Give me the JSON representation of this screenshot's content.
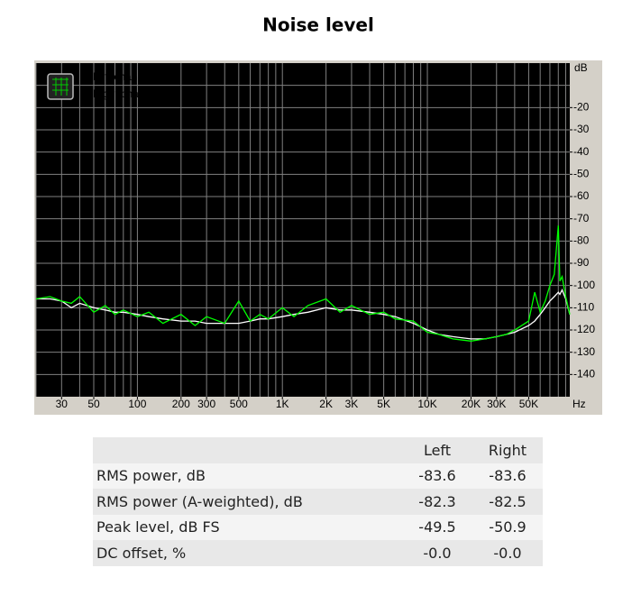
{
  "chart_data": {
    "type": "line",
    "title": "Noise level",
    "xlabel": "Hz",
    "ylabel": "dB",
    "xscale": "log",
    "xlim": [
      20,
      96000
    ],
    "ylim": [
      -150,
      0
    ],
    "xticks": [
      30,
      50,
      100,
      200,
      300,
      500,
      {
        "value": 1000,
        "label": "1K"
      },
      {
        "value": 2000,
        "label": "2K"
      },
      {
        "value": 3000,
        "label": "3K"
      },
      {
        "value": 5000,
        "label": "5K"
      },
      {
        "value": 10000,
        "label": "10K"
      },
      {
        "value": 20000,
        "label": "20K"
      },
      {
        "value": 30000,
        "label": "30K"
      },
      {
        "value": 50000,
        "label": "50K"
      }
    ],
    "yticks": [
      -20,
      -30,
      -40,
      -50,
      -60,
      -70,
      -80,
      -90,
      -100,
      -110,
      -120,
      -130,
      -140
    ],
    "xgrid": [
      20,
      30,
      40,
      50,
      60,
      70,
      80,
      90,
      100,
      200,
      300,
      400,
      500,
      600,
      700,
      800,
      900,
      1000,
      2000,
      3000,
      4000,
      5000,
      6000,
      7000,
      8000,
      9000,
      10000,
      20000,
      30000,
      40000,
      50000,
      60000,
      70000,
      80000,
      90000
    ],
    "ygrid": [
      -10,
      -20,
      -30,
      -40,
      -50,
      -60,
      -70,
      -80,
      -90,
      -100,
      -110,
      -120,
      -130,
      -140
    ],
    "grid": true,
    "legend": "top-left",
    "x": [
      20,
      25,
      30,
      35,
      40,
      50,
      60,
      70,
      80,
      100,
      120,
      150,
      200,
      250,
      300,
      400,
      500,
      600,
      700,
      800,
      1000,
      1200,
      1500,
      2000,
      2500,
      3000,
      4000,
      5000,
      6000,
      8000,
      10000,
      12000,
      15000,
      20000,
      25000,
      30000,
      35000,
      40000,
      50000,
      55000,
      60000,
      65000,
      70000,
      75000,
      80000,
      82000,
      85000,
      90000,
      96000
    ],
    "series": [
      {
        "name": "Left channel",
        "color": "#ffffff",
        "values": [
          -106,
          -106,
          -107,
          -110,
          -108,
          -110,
          -111,
          -112,
          -112,
          -113,
          -114,
          -115,
          -116,
          -116,
          -117,
          -117,
          -117,
          -116,
          -115,
          -115,
          -114,
          -113,
          -112,
          -110,
          -111,
          -111,
          -112,
          -113,
          -114,
          -117,
          -120,
          -122,
          -123,
          -124,
          -124,
          -123,
          -122,
          -121,
          -118,
          -116,
          -113,
          -110,
          -107,
          -105,
          -103,
          -104,
          -102,
          -106,
          -113
        ]
      },
      {
        "name": "Right channel",
        "color": "#00ff00",
        "values": [
          -106,
          -105,
          -107,
          -108,
          -105,
          -112,
          -109,
          -113,
          -111,
          -114,
          -112,
          -117,
          -113,
          -118,
          -114,
          -117,
          -107,
          -116,
          -113,
          -115,
          -110,
          -114,
          -109,
          -106,
          -112,
          -109,
          -113,
          -112,
          -115,
          -116,
          -121,
          -122,
          -124,
          -125,
          -124,
          -123,
          -122,
          -120,
          -116,
          -103,
          -112,
          -107,
          -100,
          -95,
          -73,
          -98,
          -96,
          -105,
          -113
        ]
      }
    ]
  },
  "table": {
    "columns": [
      "Left",
      "Right"
    ],
    "rows": [
      [
        "RMS power, dB",
        "-83.6",
        "-83.6"
      ],
      [
        "RMS power (A-weighted), dB",
        "-82.3",
        "-82.5"
      ],
      [
        "Peak level, dB FS",
        "-49.5",
        "-50.9"
      ],
      [
        "DC offset, %",
        "-0.0",
        "-0.0"
      ]
    ]
  }
}
